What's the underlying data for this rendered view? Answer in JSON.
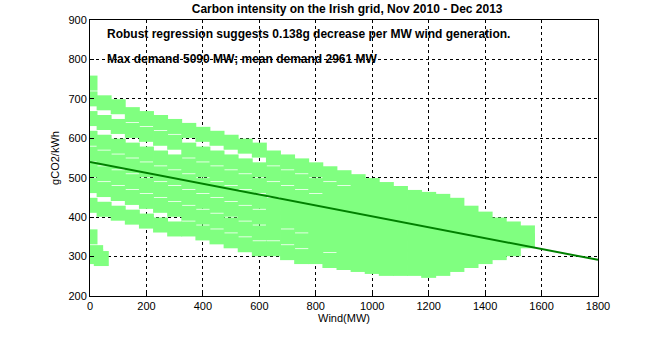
{
  "chart_data": {
    "type": "scatter",
    "title": "Carbon intensity on the Irish grid, Nov 2010 - Dec 2013",
    "x_label": "Wind(MW)",
    "y_label": "gCO2/kWh",
    "annotations": [
      "Robust regression suggests 0.138g decrease per MW wind generation.",
      "Max demand 5090 MW; mean demand 2961 MW"
    ],
    "xlim": [
      0,
      1800
    ],
    "xticks": [
      0,
      200,
      400,
      600,
      800,
      1000,
      1200,
      1400,
      1600,
      1800
    ],
    "ylim": [
      200,
      900
    ],
    "yticks": [
      200,
      300,
      400,
      500,
      600,
      700,
      800,
      900
    ],
    "grid": true,
    "series": [
      {
        "type": "scatter",
        "color": "#80ff80",
        "x": [
          0,
          0,
          0,
          0,
          0,
          0,
          0,
          0,
          0,
          20,
          20,
          40,
          50,
          50,
          50,
          50,
          50,
          50,
          50,
          100,
          100,
          100,
          100,
          100,
          100,
          100,
          150,
          150,
          150,
          150,
          150,
          150,
          150,
          200,
          200,
          200,
          200,
          200,
          200,
          200,
          250,
          250,
          250,
          250,
          250,
          250,
          250,
          300,
          300,
          300,
          300,
          300,
          300,
          300,
          350,
          350,
          350,
          350,
          350,
          350,
          350,
          400,
          400,
          400,
          400,
          400,
          400,
          400,
          450,
          450,
          450,
          450,
          450,
          450,
          450,
          500,
          500,
          500,
          500,
          500,
          500,
          500,
          550,
          550,
          550,
          550,
          550,
          550,
          550,
          600,
          600,
          600,
          600,
          600,
          600,
          600,
          650,
          650,
          650,
          650,
          650,
          650,
          650,
          700,
          700,
          700,
          700,
          700,
          700,
          700,
          750,
          750,
          750,
          750,
          750,
          750,
          750,
          800,
          800,
          800,
          800,
          800,
          800,
          800,
          850,
          850,
          850,
          850,
          850,
          850,
          850,
          900,
          900,
          900,
          900,
          900,
          900,
          900,
          950,
          950,
          950,
          950,
          950,
          950,
          950,
          1000,
          1000,
          1000,
          1000,
          1000,
          1000,
          1000,
          1050,
          1050,
          1050,
          1050,
          1050,
          1050,
          1050,
          1100,
          1100,
          1100,
          1100,
          1100,
          1100,
          1100,
          1150,
          1150,
          1150,
          1150,
          1150,
          1150,
          1150,
          1200,
          1200,
          1200,
          1200,
          1200,
          1200,
          1200,
          1250,
          1250,
          1250,
          1250,
          1250,
          1250,
          1250,
          1300,
          1300,
          1300,
          1300,
          1300,
          1300,
          1300,
          1350,
          1350,
          1350,
          1350,
          1350,
          1350,
          1400,
          1400,
          1400,
          1400,
          1400,
          1450,
          1450,
          1450,
          1450,
          1500,
          1500,
          1500,
          1550,
          1550
        ],
        "values": [
          350,
          430,
          480,
          520,
          560,
          600,
          650,
          700,
          740,
          300,
          310,
          295,
          420,
          470,
          510,
          550,
          590,
          640,
          690,
          410,
          460,
          500,
          540,
          580,
          630,
          680,
          400,
          450,
          490,
          530,
          570,
          620,
          660,
          390,
          440,
          480,
          520,
          560,
          610,
          650,
          380,
          430,
          470,
          510,
          550,
          600,
          640,
          370,
          420,
          460,
          500,
          540,
          590,
          630,
          370,
          410,
          450,
          490,
          530,
          570,
          620,
          360,
          400,
          440,
          480,
          520,
          560,
          610,
          350,
          390,
          430,
          470,
          510,
          550,
          600,
          340,
          380,
          420,
          460,
          500,
          540,
          590,
          330,
          370,
          410,
          450,
          490,
          530,
          580,
          320,
          360,
          400,
          440,
          480,
          520,
          570,
          320,
          360,
          395,
          430,
          470,
          510,
          550,
          310,
          350,
          390,
          425,
          460,
          500,
          540,
          300,
          340,
          380,
          415,
          450,
          490,
          530,
          300,
          335,
          370,
          405,
          440,
          480,
          520,
          290,
          330,
          365,
          400,
          435,
          470,
          510,
          285,
          320,
          355,
          390,
          425,
          460,
          500,
          280,
          315,
          350,
          385,
          420,
          455,
          490,
          275,
          310,
          345,
          380,
          410,
          445,
          480,
          270,
          305,
          340,
          370,
          400,
          435,
          470,
          270,
          300,
          335,
          365,
          395,
          430,
          460,
          270,
          300,
          330,
          360,
          390,
          420,
          450,
          265,
          295,
          325,
          355,
          385,
          415,
          445,
          270,
          300,
          330,
          355,
          385,
          410,
          440,
          280,
          305,
          330,
          355,
          380,
          405,
          430,
          290,
          310,
          335,
          360,
          385,
          410,
          300,
          320,
          345,
          370,
          395,
          310,
          330,
          355,
          380,
          320,
          345,
          370,
          340,
          360
        ]
      },
      {
        "type": "line",
        "color": "#008000",
        "x": [
          0,
          1800
        ],
        "values": [
          540,
          291.6
        ]
      }
    ]
  }
}
